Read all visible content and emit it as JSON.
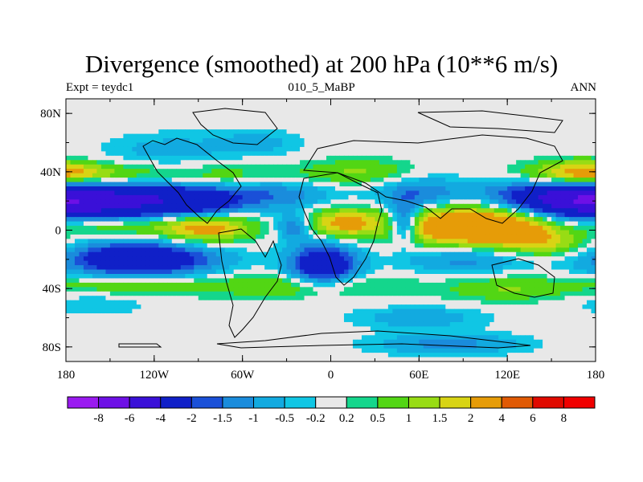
{
  "chart_data": {
    "type": "heatmap",
    "title": "Divergence (smoothed) at 200 hPa (10**6 m/s)",
    "subtitle_left": "Expt = teydc1",
    "subtitle_center": "010_5_MaBP",
    "subtitle_right": "ANN",
    "x_ticks": [
      {
        "value": -180,
        "label": "180"
      },
      {
        "value": -120,
        "label": "120W"
      },
      {
        "value": -60,
        "label": "60W"
      },
      {
        "value": 0,
        "label": "0"
      },
      {
        "value": 60,
        "label": "60E"
      },
      {
        "value": 120,
        "label": "120E"
      },
      {
        "value": 180,
        "label": "180"
      }
    ],
    "y_ticks": [
      {
        "value": 80,
        "label": "80N"
      },
      {
        "value": 40,
        "label": "40N"
      },
      {
        "value": 0,
        "label": "0"
      },
      {
        "value": -40,
        "label": "40S"
      },
      {
        "value": -80,
        "label": "80S"
      }
    ],
    "xlim": [
      -180,
      180
    ],
    "ylim": [
      -90,
      90
    ],
    "levels": [
      "-8",
      "-6",
      "-4",
      "-2",
      "-1.5",
      "-1",
      "-0.5",
      "-0.2",
      "0.2",
      "0.5",
      "1",
      "1.5",
      "2",
      "4",
      "6",
      "8"
    ],
    "colors": [
      "#9a1af0",
      "#6e10e6",
      "#3a10d8",
      "#1020c8",
      "#1a50d8",
      "#1a8cdc",
      "#12aae0",
      "#10c6e4",
      "#e8e8e8",
      "#14d68c",
      "#52d614",
      "#98dc14",
      "#d8d414",
      "#e69c08",
      "#e05a04",
      "#e00a00",
      "#f00000"
    ],
    "field_components": [
      {
        "lon": -170,
        "lat": 18,
        "amp": -3.4,
        "slon": 38,
        "slat": 9
      },
      {
        "lon": -120,
        "lat": 22,
        "amp": -2.6,
        "slon": 32,
        "slat": 9
      },
      {
        "lon": -85,
        "lat": 18,
        "amp": -1.6,
        "slon": 18,
        "slat": 7
      },
      {
        "lon": -40,
        "lat": 25,
        "amp": -1.5,
        "slon": 28,
        "slat": 8
      },
      {
        "lon": -25,
        "lat": 2,
        "amp": -1.6,
        "slon": 8,
        "slat": 6
      },
      {
        "lon": 50,
        "lat": 5,
        "amp": -2.4,
        "slon": 7,
        "slat": 9
      },
      {
        "lon": 60,
        "lat": 24,
        "amp": -1.6,
        "slon": 20,
        "slat": 8
      },
      {
        "lon": 165,
        "lat": 22,
        "amp": -3.2,
        "slon": 25,
        "slat": 7
      },
      {
        "lon": 120,
        "lat": 25,
        "amp": -1.0,
        "slon": 25,
        "slat": 8
      },
      {
        "lon": -130,
        "lat": -20,
        "amp": -3.6,
        "slon": 35,
        "slat": 8
      },
      {
        "lon": -5,
        "lat": -24,
        "amp": -3.4,
        "slon": 16,
        "slat": 10
      },
      {
        "lon": 90,
        "lat": -20,
        "amp": -1.3,
        "slon": 28,
        "slat": 7
      },
      {
        "lon": 60,
        "lat": -60,
        "amp": -0.9,
        "slon": 30,
        "slat": 5
      },
      {
        "lon": 80,
        "lat": -78,
        "amp": -1.2,
        "slon": 35,
        "slat": 5
      },
      {
        "lon": -110,
        "lat": 55,
        "amp": -0.7,
        "slon": 30,
        "slat": 8
      },
      {
        "lon": -50,
        "lat": 60,
        "amp": -0.7,
        "slon": 20,
        "slat": 6
      },
      {
        "lon": -160,
        "lat": -50,
        "amp": -0.5,
        "slon": 25,
        "slat": 6
      },
      {
        "lon": -170,
        "lat": 38,
        "amp": 1.4,
        "slon": 40,
        "slat": 5
      },
      {
        "lon": -70,
        "lat": 36,
        "amp": 1.0,
        "slon": 45,
        "slat": 6
      },
      {
        "lon": 20,
        "lat": 40,
        "amp": 1.0,
        "slon": 25,
        "slat": 6
      },
      {
        "lon": 170,
        "lat": 40,
        "amp": 1.6,
        "slon": 22,
        "slat": 6
      },
      {
        "lon": -150,
        "lat": 3,
        "amp": 1.4,
        "slon": 30,
        "slat": 5
      },
      {
        "lon": -85,
        "lat": 2,
        "amp": 2.6,
        "slon": 22,
        "slat": 7
      },
      {
        "lon": 10,
        "lat": 5,
        "amp": 2.4,
        "slon": 18,
        "slat": 7
      },
      {
        "lon": 90,
        "lat": 3,
        "amp": 3.6,
        "slon": 30,
        "slat": 10
      },
      {
        "lon": 130,
        "lat": 0,
        "amp": 1.6,
        "slon": 20,
        "slat": 8
      },
      {
        "lon": -20,
        "lat": -38,
        "amp": 1.1,
        "slon": 45,
        "slat": 6
      },
      {
        "lon": -140,
        "lat": -38,
        "amp": 0.9,
        "slon": 40,
        "slat": 5
      },
      {
        "lon": 120,
        "lat": -40,
        "amp": 1.0,
        "slon": 30,
        "slat": 6
      },
      {
        "lon": 150,
        "lat": -10,
        "amp": 1.2,
        "slon": 20,
        "slat": 6
      }
    ]
  }
}
